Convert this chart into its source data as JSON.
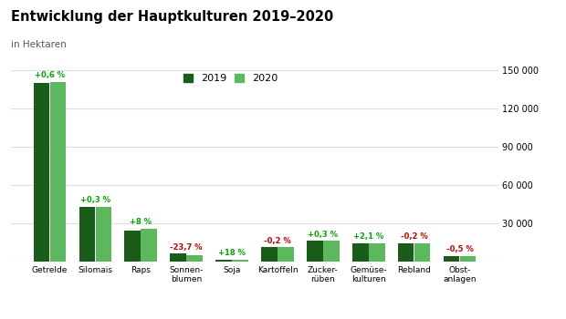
{
  "title": "Entwicklung der Hauptkulturen 2019–2020",
  "subtitle": "in Hektaren",
  "categories": [
    "Getrelde",
    "Silomais",
    "Raps",
    "Sonnen-\nblumen",
    "Soja",
    "Kartoffeln",
    "Zucker-\nrüben",
    "Gemüse-\nkulturen",
    "Rebland",
    "Obst-\nanlagen"
  ],
  "values_2019": [
    140000,
    43000,
    24000,
    6200,
    1500,
    11100,
    16200,
    14100,
    14600,
    4600
  ],
  "values_2020": [
    140840,
    43129,
    25920,
    4737,
    1770,
    11078,
    16249,
    14396,
    14571,
    4577
  ],
  "color_2019": "#1a5c1a",
  "color_2020": "#5cb85c",
  "labels": [
    "+0,6 %",
    "+0,3 %",
    "+8 %",
    "-23,7 %",
    "+18 %",
    "-0,2 %",
    "+0,3 %",
    "+2,1 %",
    "-0,2 %",
    "-0,5 %"
  ],
  "label_colors": [
    "#00aa00",
    "#00aa00",
    "#00aa00",
    "#cc0000",
    "#00aa00",
    "#cc0000",
    "#00aa00",
    "#00aa00",
    "#cc0000",
    "#cc0000"
  ],
  "ylim": [
    0,
    150000
  ],
  "yticks": [
    0,
    30000,
    60000,
    90000,
    120000,
    150000
  ],
  "ytick_labels": [
    "",
    "30 000",
    "60 000",
    "90 000",
    "120 000",
    "150 000"
  ],
  "background_color": "#ffffff",
  "legend_2019": "2019",
  "legend_2020": "2020"
}
